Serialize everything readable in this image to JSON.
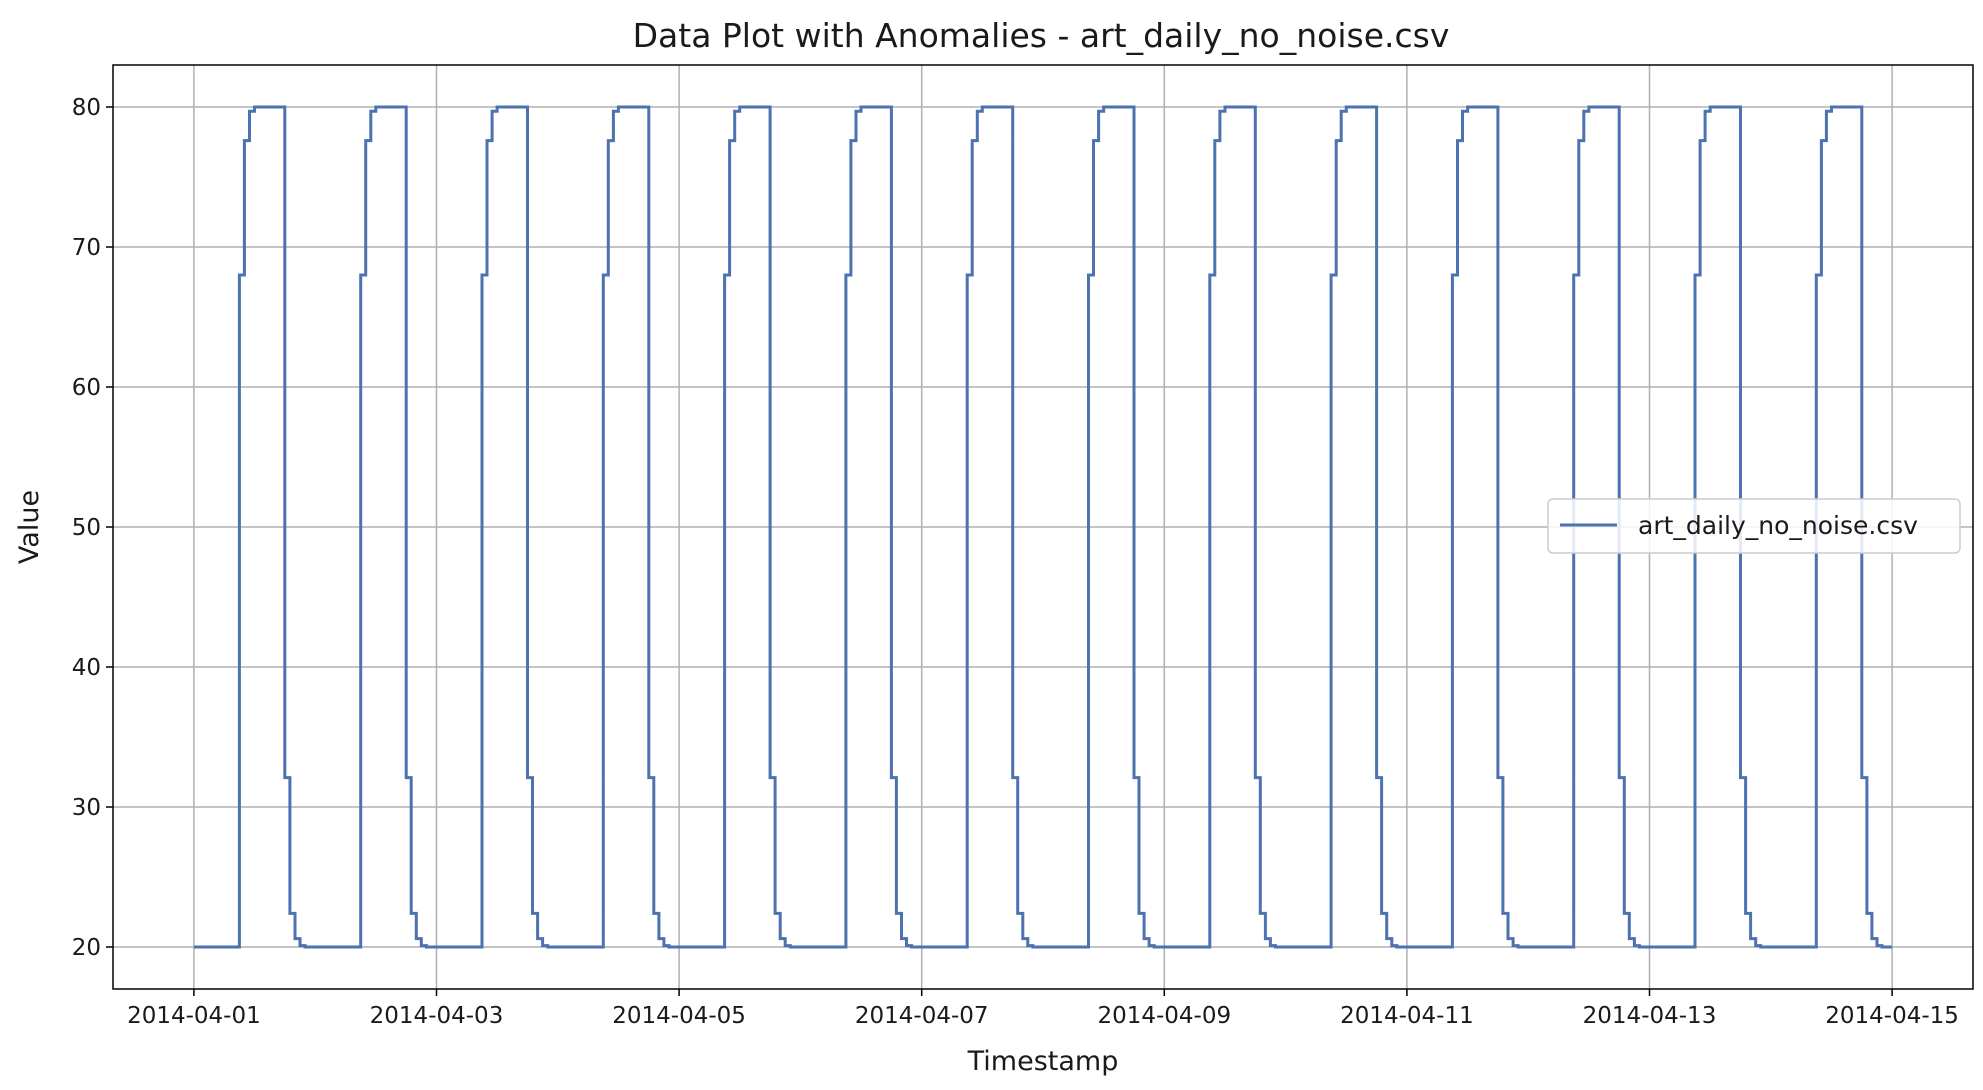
{
  "chart_data": {
    "type": "line",
    "title": "Data Plot with Anomalies - art_daily_no_noise.csv",
    "xlabel": "Timestamp",
    "ylabel": "Value",
    "x_range": [
      "2014-03-31T08:00",
      "2014-04-15T16:00"
    ],
    "ylim": [
      17,
      83
    ],
    "grid": true,
    "legend_position": "center-right",
    "line_color": "#4c72b0",
    "x_ticks": [
      "2014-04-01",
      "2014-04-03",
      "2014-04-05",
      "2014-04-07",
      "2014-04-09",
      "2014-04-11",
      "2014-04-13",
      "2014-04-15"
    ],
    "y_ticks": [
      20,
      30,
      40,
      50,
      60,
      70,
      80
    ],
    "series": [
      {
        "name": "art_daily_no_noise.csv",
        "start": "2014-04-01",
        "end": "2014-04-15",
        "daily_pattern": [
          {
            "time": "00:00",
            "value": 20
          },
          {
            "time": "09:00",
            "value": 68
          },
          {
            "time": "10:00",
            "value": 77.6
          },
          {
            "time": "11:00",
            "value": 79.7
          },
          {
            "time": "12:00",
            "value": 80
          },
          {
            "time": "18:00",
            "value": 32.1
          },
          {
            "time": "19:00",
            "value": 22.4
          },
          {
            "time": "20:00",
            "value": 20.6
          },
          {
            "time": "21:00",
            "value": 20.1
          },
          {
            "time": "22:00",
            "value": 20
          }
        ]
      }
    ]
  }
}
